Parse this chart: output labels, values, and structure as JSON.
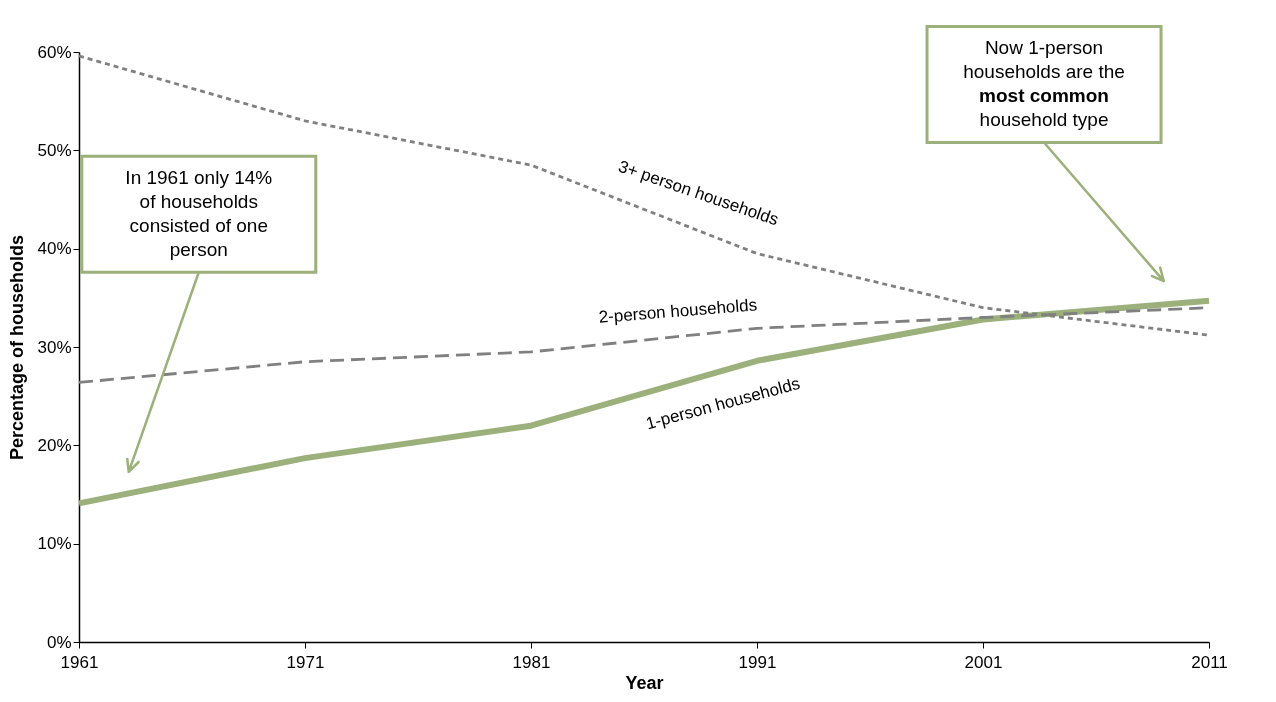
{
  "chart_data": {
    "type": "line",
    "xlabel": "Year",
    "ylabel": "Percentage of households",
    "x": [
      1961,
      1971,
      1981,
      1991,
      2001,
      2011
    ],
    "series": [
      {
        "name": "1-person households",
        "color": "#9bb07a",
        "line_style": "solid",
        "values": [
          14.1,
          18.7,
          22,
          28.6,
          32.8,
          34.7
        ]
      },
      {
        "name": "2-person households",
        "color": "#808080",
        "line_style": "dashed",
        "values": [
          26.4,
          28.5,
          29.5,
          31.9,
          33,
          34
        ]
      },
      {
        "name": "3+ person households",
        "color": "#808080",
        "line_style": "dotted",
        "values": [
          59.6,
          53,
          48.5,
          39.5,
          34,
          31.2
        ]
      }
    ],
    "xlim": [
      1961,
      2011
    ],
    "xticks": [
      1961,
      1971,
      1981,
      1991,
      2001,
      2011
    ],
    "ylim": [
      0,
      60
    ],
    "yticks": [
      {
        "value": 0,
        "label": "0%"
      },
      {
        "value": 10,
        "label": "10%"
      },
      {
        "value": 20,
        "label": "20%"
      },
      {
        "value": 30,
        "label": "30%"
      },
      {
        "value": 40,
        "label": "40%"
      },
      {
        "value": 50,
        "label": "50%"
      },
      {
        "value": 60,
        "label": "60%"
      }
    ],
    "marker": "none",
    "annotations": [
      "In 1961 only 14% of households consisted of one person",
      "Now 1-person households are the most common household type"
    ]
  }
}
